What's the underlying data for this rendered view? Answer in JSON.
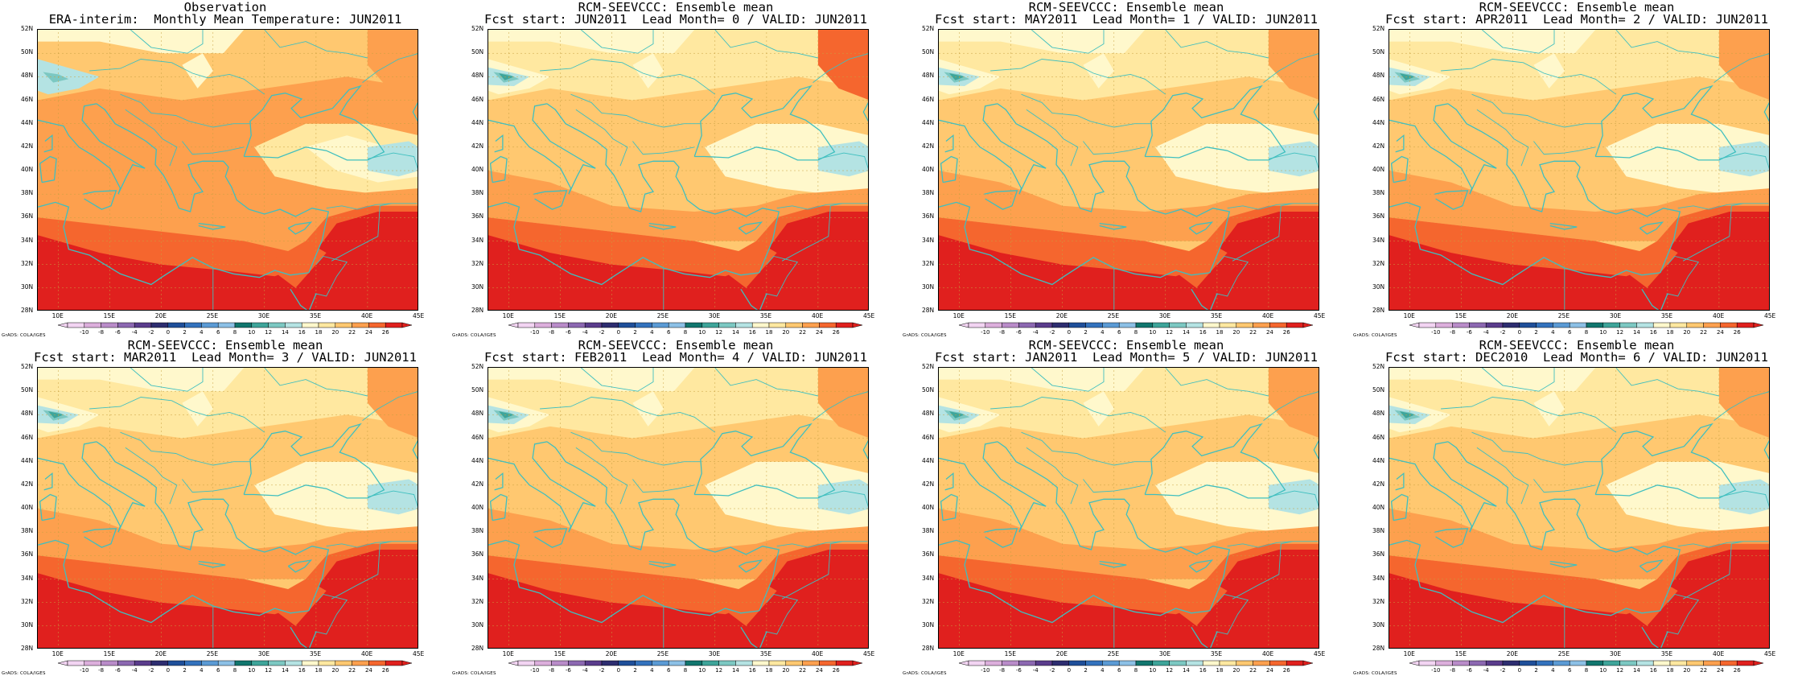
{
  "panels": [
    {
      "title_line1": "Observation",
      "title_line2": "ERA-interim:  Monthly Mean Temperature: JUN2011",
      "variant": 0
    },
    {
      "title_line1": "RCM-SEEVCCC: Ensemble mean",
      "title_line2": "Fcst start: JUN2011  Lead Month= 0 / VALID: JUN2011",
      "variant": 1
    },
    {
      "title_line1": "RCM-SEEVCCC: Ensemble mean",
      "title_line2": "Fcst start: MAY2011  Lead Month= 1 / VALID: JUN2011",
      "variant": 2
    },
    {
      "title_line1": "RCM-SEEVCCC: Ensemble mean",
      "title_line2": "Fcst start: APR2011  Lead Month= 2 / VALID: JUN2011",
      "variant": 2
    },
    {
      "title_line1": "RCM-SEEVCCC: Ensemble mean",
      "title_line2": "Fcst start: MAR2011  Lead Month= 3 / VALID: JUN2011",
      "variant": 3
    },
    {
      "title_line1": "RCM-SEEVCCC: Ensemble mean",
      "title_line2": "Fcst start: FEB2011  Lead Month= 4 / VALID: JUN2011",
      "variant": 3
    },
    {
      "title_line1": "RCM-SEEVCCC: Ensemble mean",
      "title_line2": "Fcst start: JAN2011  Lead Month= 5 / VALID: JUN2011",
      "variant": 3
    },
    {
      "title_line1": "RCM-SEEVCCC: Ensemble mean",
      "title_line2": "Fcst start: DEC2010  Lead Month= 6 / VALID: JUN2011",
      "variant": 3
    }
  ],
  "map": {
    "lat_labels": [
      "52N",
      "50N",
      "48N",
      "46N",
      "44N",
      "42N",
      "40N",
      "38N",
      "36N",
      "34N",
      "32N",
      "30N",
      "28N"
    ],
    "lon_labels": [
      "10E",
      "15E",
      "20E",
      "25E",
      "30E",
      "35E",
      "40E",
      "45E"
    ],
    "lon_range": [
      8,
      45
    ],
    "lat_range": [
      28,
      52
    ],
    "coastline_color": "#3fbfbf",
    "grid_color": "#c8a040"
  },
  "colorbar": {
    "labels": [
      "-10",
      "-8",
      "-6",
      "-4",
      "-2",
      "0",
      "2",
      "4",
      "6",
      "8",
      "10",
      "12",
      "14",
      "16",
      "18",
      "20",
      "22",
      "24",
      "26"
    ],
    "colors": [
      "#f2d4f2",
      "#dcaedc",
      "#b98cc9",
      "#8c68b1",
      "#5a3c8c",
      "#2d2d70",
      "#1f4f9a",
      "#3372bd",
      "#5b9bd5",
      "#8cc0e6",
      "#11766e",
      "#3ea59a",
      "#7cc8c2",
      "#b4e3e3",
      "#fff8cc",
      "#ffe8a0",
      "#ffc870",
      "#fda04e",
      "#f5662e",
      "#e0201e"
    ],
    "credit": "GrADS: COLA/IGES"
  }
}
